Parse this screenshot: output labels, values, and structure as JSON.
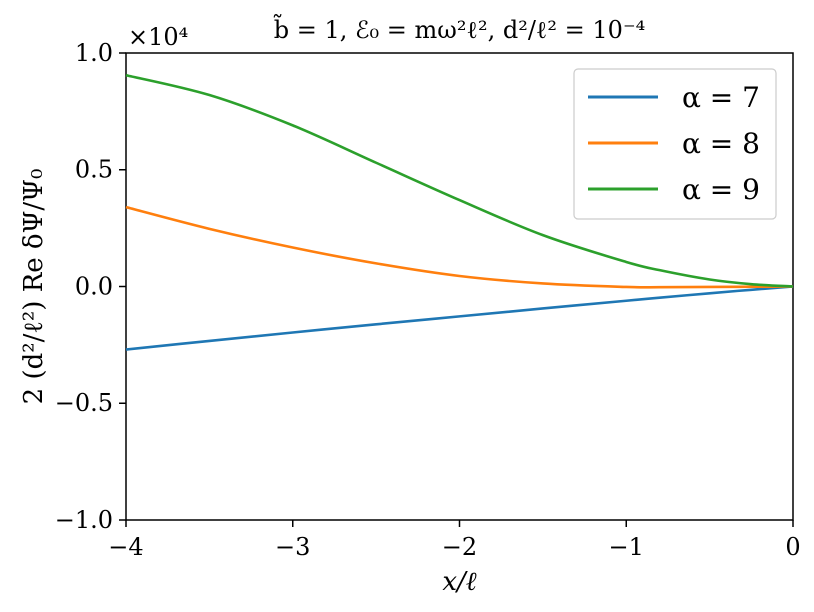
{
  "chart_data": {
    "type": "line",
    "title": "b̃ = 1, ℰ₀ = mω²ℓ², d²/ℓ² = 10⁻⁴",
    "xlabel": "x/ℓ",
    "ylabel": "2 (d²/ℓ²) Re δΨ/Ψ₀",
    "y_offset_text": "×10⁴",
    "xlim": [
      -4,
      0
    ],
    "ylim": [
      -1.0,
      1.0
    ],
    "x_ticks": [
      "−4",
      "−3",
      "−2",
      "−1",
      "0"
    ],
    "y_ticks": [
      "−1.0",
      "−0.5",
      "0.0",
      "0.5",
      "1.0"
    ],
    "grid": false,
    "legend_position": "top-right",
    "x": [
      -4.0,
      -3.5,
      -3.0,
      -2.5,
      -2.0,
      -1.5,
      -1.0,
      -0.8,
      -0.5,
      -0.25,
      0.0
    ],
    "series": [
      {
        "name": "α = 7",
        "color": "#1f77b4",
        "values": [
          -0.27,
          -0.233,
          -0.197,
          -0.162,
          -0.128,
          -0.094,
          -0.061,
          -0.048,
          -0.029,
          -0.014,
          0.0
        ]
      },
      {
        "name": "α = 8",
        "color": "#ff7f0e",
        "values": [
          0.34,
          0.247,
          0.167,
          0.099,
          0.045,
          0.013,
          -0.002,
          -0.003,
          -0.002,
          -0.001,
          0.0
        ]
      },
      {
        "name": "α = 9",
        "color": "#2ca02c",
        "values": [
          0.905,
          0.82,
          0.69,
          0.53,
          0.37,
          0.22,
          0.105,
          0.07,
          0.03,
          0.01,
          0.0
        ]
      }
    ]
  }
}
